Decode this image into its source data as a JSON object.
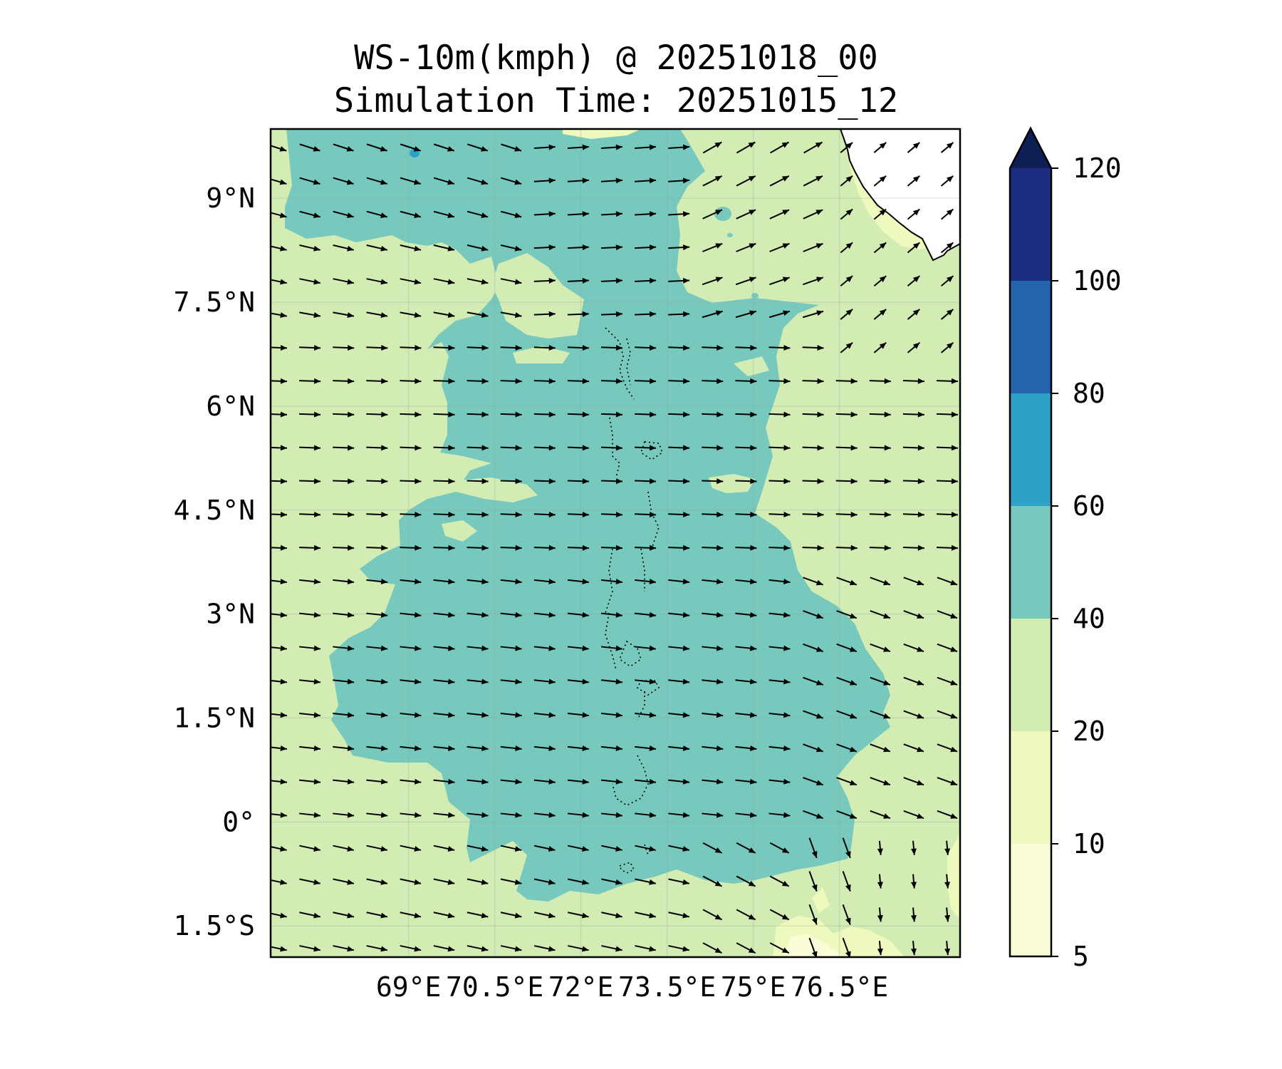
{
  "title": {
    "line1": "WS-10m(kmph) @ 20251018_00",
    "line2": "Simulation Time: 20251015_12"
  },
  "map": {
    "region": {
      "lon": [
        66.6,
        78.6
      ],
      "lat": [
        -1.95,
        10.0
      ]
    },
    "lat_ticks": [
      {
        "value": 9,
        "label": "9°N"
      },
      {
        "value": 7.5,
        "label": "7.5°N"
      },
      {
        "value": 6,
        "label": "6°N"
      },
      {
        "value": 4.5,
        "label": "4.5°N"
      },
      {
        "value": 3,
        "label": "3°N"
      },
      {
        "value": 1.5,
        "label": "1.5°N"
      },
      {
        "value": 0,
        "label": "0°"
      },
      {
        "value": -1.5,
        "label": "1.5°S"
      }
    ],
    "lon_ticks": [
      {
        "value": 69,
        "label": "69°E"
      },
      {
        "value": 70.5,
        "label": "70.5°E"
      },
      {
        "value": 72,
        "label": "72°E"
      },
      {
        "value": 73.5,
        "label": "73.5°E"
      },
      {
        "value": 75,
        "label": "75°E"
      },
      {
        "value": 76.5,
        "label": "76.5°E"
      }
    ],
    "gridlines": true,
    "dominant_wind": "westerly, turning southward in the southeast corner"
  },
  "colorbar": {
    "levels": [
      5,
      10,
      20,
      40,
      60,
      80,
      100,
      120
    ],
    "colors": [
      "#fbfdd6",
      "#eef9bd",
      "#d2ecb4",
      "#77c9bd",
      "#2ea1c8",
      "#2265ac",
      "#1d2d83"
    ],
    "extend_color": "#0d1f55",
    "extend": "max"
  }
}
